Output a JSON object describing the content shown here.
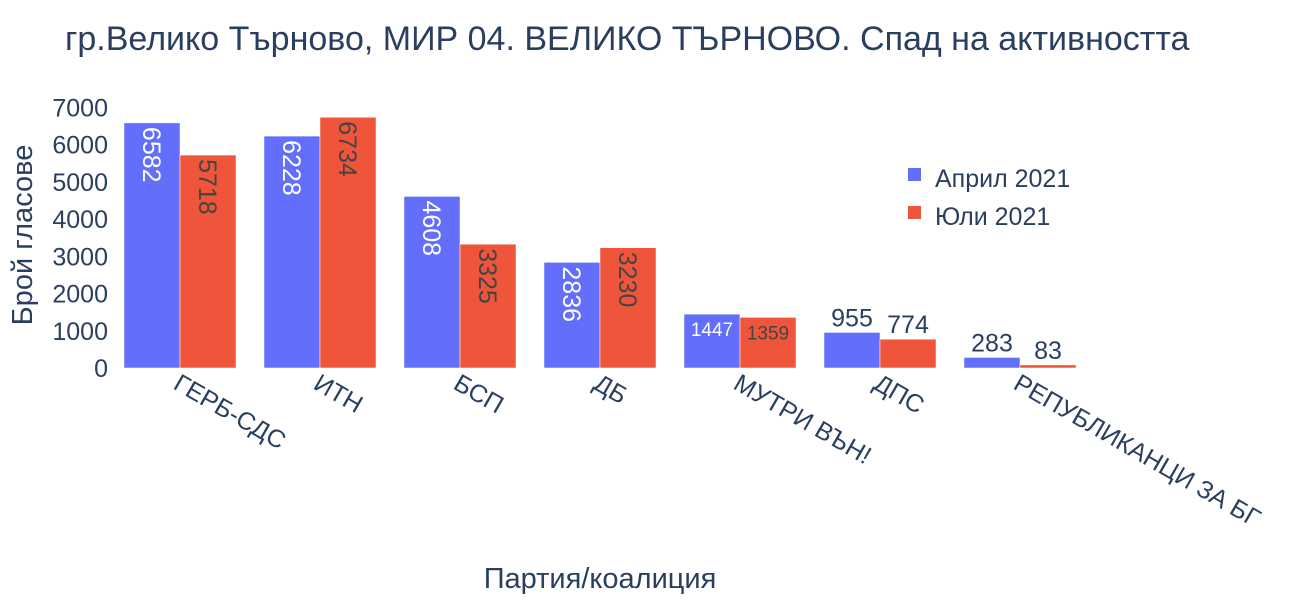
{
  "chart_data": {
    "type": "bar",
    "title": "гр.Велико Търново, МИР 04. ВЕЛИКО ТЪРНОВО. Спад на активността",
    "xlabel": "Партия/коалиция",
    "ylabel": "Брой гласове",
    "categories": [
      "ГЕРБ-СДС",
      "ИТН",
      "БСП",
      "ДБ",
      "МУТРИ ВЪН!",
      "ДПС",
      "РЕПУБЛИКАНЦИ ЗА БГ"
    ],
    "series": [
      {
        "name": "Април 2021",
        "color": "#636efa",
        "values": [
          6582,
          6228,
          4608,
          2836,
          1447,
          955,
          283
        ]
      },
      {
        "name": "Юли 2021",
        "color": "#ef553b",
        "values": [
          5718,
          6734,
          3325,
          3230,
          1359,
          774,
          83
        ]
      }
    ],
    "yticks": [
      0,
      1000,
      2000,
      3000,
      4000,
      5000,
      6000,
      7000
    ],
    "ylim": [
      0,
      7090
    ],
    "grid": false,
    "legend_position": "right"
  }
}
